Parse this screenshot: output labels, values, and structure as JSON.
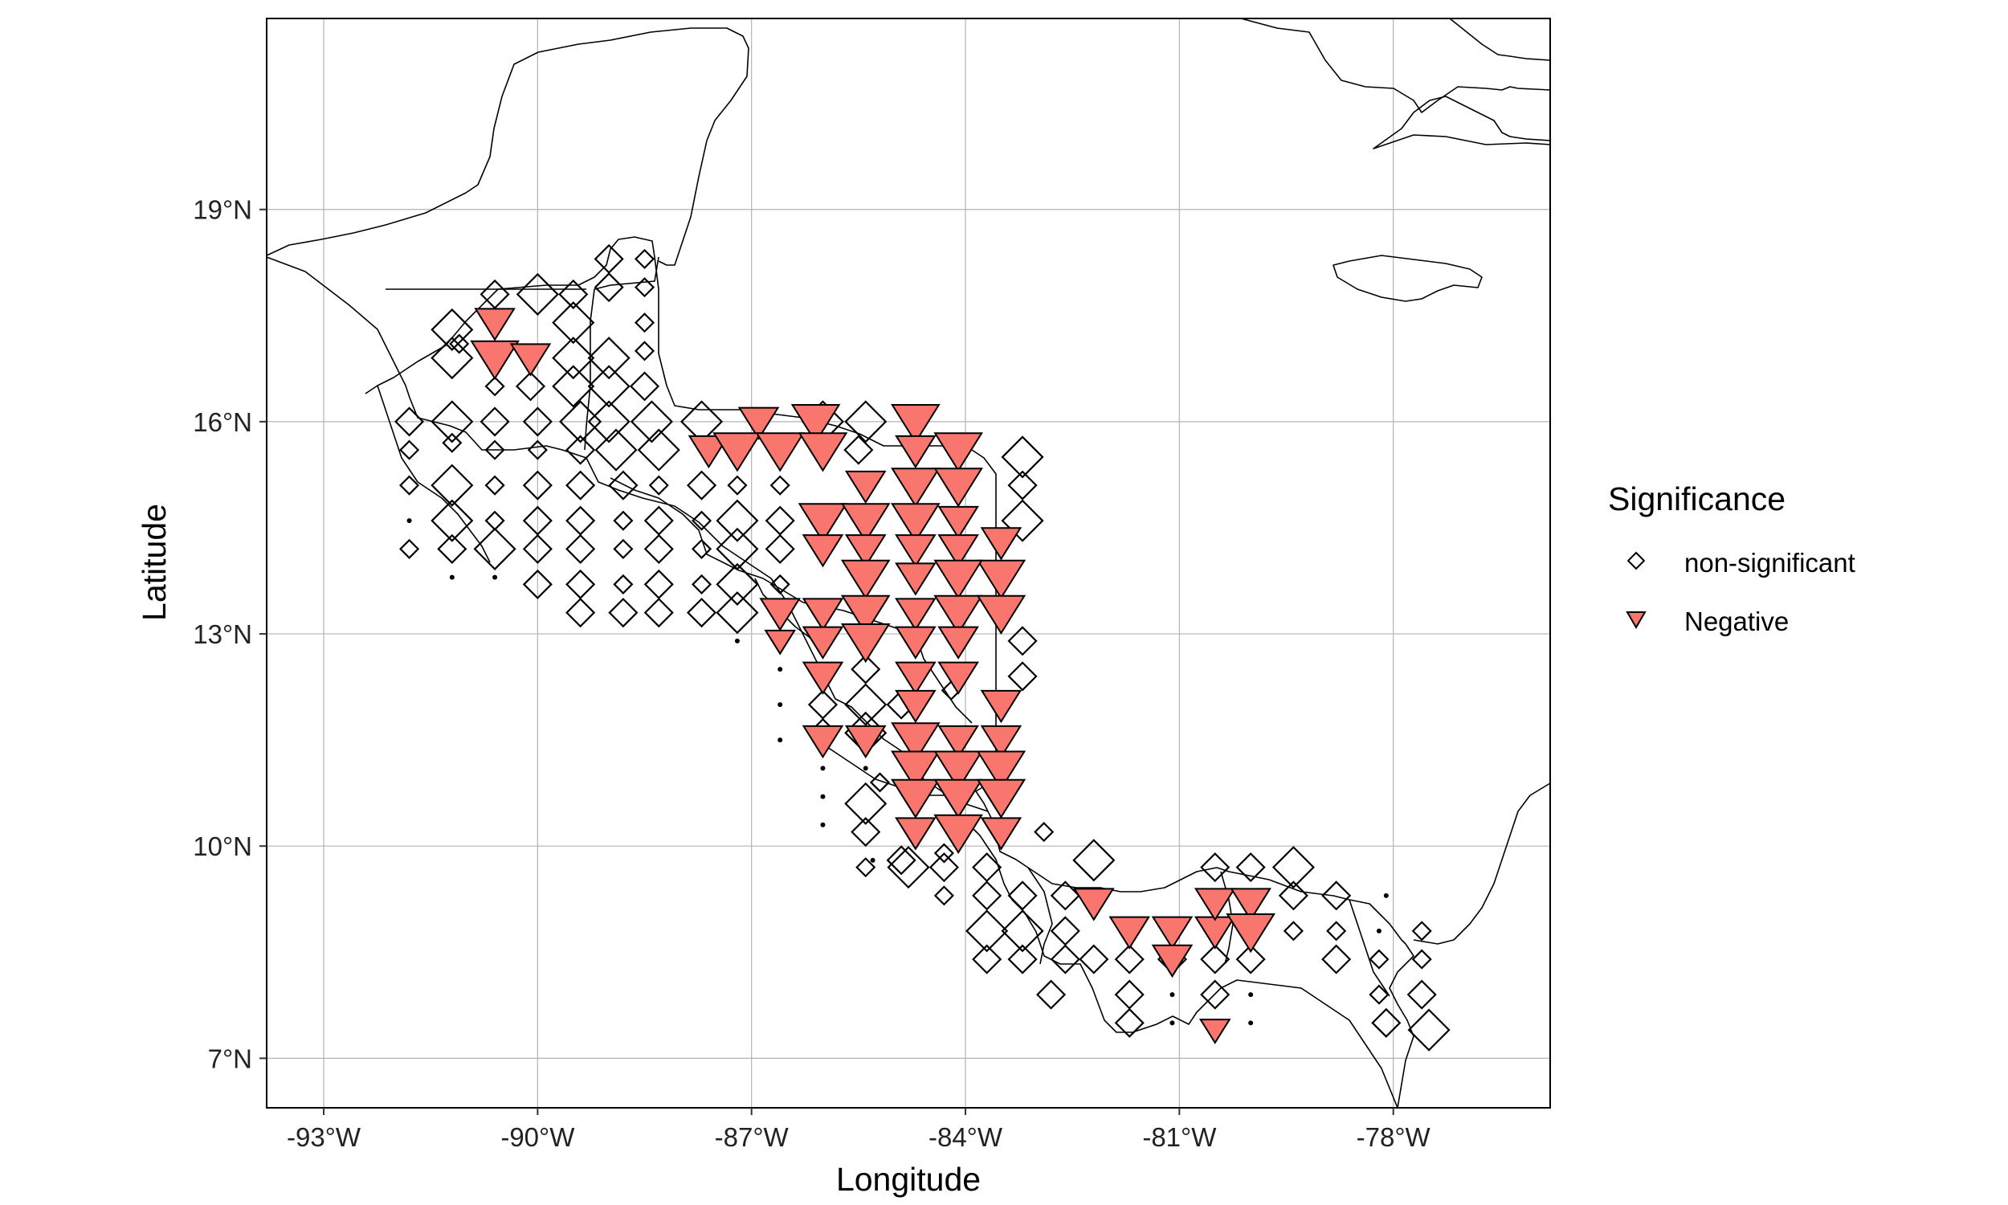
{
  "chart_data": {
    "type": "scatter",
    "map": "Central America",
    "xlabel": "Longitude",
    "ylabel": "Latitude",
    "xlim": [
      -93.8,
      -75.8
    ],
    "ylim": [
      6.3,
      21.7
    ],
    "x_ticks": [
      {
        "value": -93,
        "label": "-93°W"
      },
      {
        "value": -90,
        "label": "-90°W"
      },
      {
        "value": -87,
        "label": "-87°W"
      },
      {
        "value": -84,
        "label": "-84°W"
      },
      {
        "value": -81,
        "label": "-81°W"
      },
      {
        "value": -78,
        "label": "-78°W"
      }
    ],
    "y_ticks": [
      {
        "value": 7,
        "label": "7°N"
      },
      {
        "value": 10,
        "label": "10°N"
      },
      {
        "value": 13,
        "label": "13°N"
      },
      {
        "value": 16,
        "label": "16°N"
      },
      {
        "value": 19,
        "label": "19°N"
      }
    ],
    "grid": true,
    "legend": {
      "title": "Significance",
      "placement": "right",
      "items": [
        {
          "label": "non-significant",
          "shape": "diamond-open",
          "color": "#000000"
        },
        {
          "label": "Negative",
          "shape": "triangle-down",
          "color": "#F8766D"
        }
      ]
    },
    "colors": {
      "negative_fill": "#F8766D",
      "outline": "#000000",
      "grid": "#b3b3b3"
    },
    "series": [
      {
        "name": "non-significant",
        "points": [
          [
            -91.2,
            17.3,
            3
          ],
          [
            -90.6,
            17.8,
            2
          ],
          [
            -90.0,
            17.8,
            3
          ],
          [
            -89.5,
            17.8,
            2
          ],
          [
            -89.0,
            18.3,
            2
          ],
          [
            -88.5,
            18.3,
            1
          ],
          [
            -89.5,
            17.4,
            3
          ],
          [
            -89.0,
            17.9,
            2
          ],
          [
            -88.5,
            17.9,
            1
          ],
          [
            -91.2,
            16.9,
            3
          ],
          [
            -91.1,
            17.1,
            1
          ],
          [
            -89.5,
            16.9,
            3
          ],
          [
            -89.0,
            16.9,
            3
          ],
          [
            -88.5,
            17.4,
            1
          ],
          [
            -88.5,
            17.0,
            1
          ],
          [
            -90.6,
            16.5,
            1
          ],
          [
            -90.1,
            16.5,
            2
          ],
          [
            -89.5,
            16.5,
            3
          ],
          [
            -89.0,
            16.5,
            3
          ],
          [
            -88.5,
            16.5,
            2
          ],
          [
            -91.8,
            16.0,
            2
          ],
          [
            -91.2,
            16.0,
            3
          ],
          [
            -90.6,
            16.0,
            2
          ],
          [
            -90.0,
            16.0,
            2
          ],
          [
            -89.4,
            16.0,
            3
          ],
          [
            -89.0,
            16.0,
            3
          ],
          [
            -88.4,
            16.0,
            3
          ],
          [
            -87.7,
            16.0,
            3
          ],
          [
            -86.0,
            16.0,
            3
          ],
          [
            -85.4,
            16.0,
            3
          ],
          [
            -91.8,
            15.6,
            1
          ],
          [
            -91.2,
            15.7,
            1
          ],
          [
            -90.6,
            15.6,
            1
          ],
          [
            -90.0,
            15.6,
            1
          ],
          [
            -89.4,
            15.6,
            2
          ],
          [
            -88.9,
            15.6,
            3
          ],
          [
            -88.3,
            15.6,
            3
          ],
          [
            -85.5,
            15.6,
            2
          ],
          [
            -83.2,
            15.5,
            3
          ],
          [
            -91.8,
            15.1,
            1
          ],
          [
            -91.2,
            15.1,
            3
          ],
          [
            -90.6,
            15.1,
            1
          ],
          [
            -90.0,
            15.1,
            2
          ],
          [
            -89.4,
            15.1,
            2
          ],
          [
            -88.8,
            15.1,
            2
          ],
          [
            -88.3,
            15.1,
            1
          ],
          [
            -87.7,
            15.1,
            2
          ],
          [
            -87.2,
            15.1,
            1
          ],
          [
            -86.6,
            15.1,
            1
          ],
          [
            -83.2,
            15.1,
            2
          ],
          [
            -91.8,
            14.6,
            0
          ],
          [
            -91.2,
            14.6,
            3
          ],
          [
            -90.6,
            14.6,
            1
          ],
          [
            -90.0,
            14.6,
            2
          ],
          [
            -89.4,
            14.6,
            2
          ],
          [
            -88.8,
            14.6,
            1
          ],
          [
            -88.3,
            14.6,
            2
          ],
          [
            -87.7,
            14.6,
            1
          ],
          [
            -87.2,
            14.6,
            3
          ],
          [
            -86.6,
            14.6,
            2
          ],
          [
            -83.2,
            14.6,
            3
          ],
          [
            -91.8,
            14.2,
            1
          ],
          [
            -91.2,
            14.2,
            2
          ],
          [
            -90.6,
            14.2,
            3
          ],
          [
            -90.0,
            14.2,
            2
          ],
          [
            -89.4,
            14.2,
            2
          ],
          [
            -88.8,
            14.2,
            1
          ],
          [
            -88.3,
            14.2,
            2
          ],
          [
            -87.7,
            14.2,
            1
          ],
          [
            -87.2,
            14.2,
            3
          ],
          [
            -86.6,
            14.2,
            2
          ],
          [
            -91.2,
            13.8,
            0
          ],
          [
            -90.6,
            13.8,
            0
          ],
          [
            -90.0,
            13.7,
            2
          ],
          [
            -89.4,
            13.7,
            2
          ],
          [
            -88.8,
            13.7,
            1
          ],
          [
            -88.3,
            13.7,
            2
          ],
          [
            -87.7,
            13.7,
            1
          ],
          [
            -87.2,
            13.7,
            3
          ],
          [
            -86.6,
            13.7,
            1
          ],
          [
            -89.4,
            13.3,
            2
          ],
          [
            -88.8,
            13.3,
            2
          ],
          [
            -88.3,
            13.3,
            2
          ],
          [
            -87.7,
            13.3,
            2
          ],
          [
            -87.2,
            13.3,
            3
          ],
          [
            -87.2,
            12.9,
            0
          ],
          [
            -86.6,
            12.9,
            0
          ],
          [
            -83.2,
            12.9,
            2
          ],
          [
            -86.6,
            12.5,
            0
          ],
          [
            -86.0,
            12.5,
            0
          ],
          [
            -85.4,
            12.5,
            2
          ],
          [
            -83.2,
            12.4,
            2
          ],
          [
            -86.6,
            12.0,
            0
          ],
          [
            -86.0,
            12.0,
            2
          ],
          [
            -85.4,
            12.0,
            3
          ],
          [
            -84.9,
            12.0,
            2
          ],
          [
            -86.6,
            11.5,
            0
          ],
          [
            -86.0,
            11.6,
            2
          ],
          [
            -85.4,
            11.6,
            3
          ],
          [
            -86.0,
            11.1,
            0
          ],
          [
            -85.4,
            11.1,
            0
          ],
          [
            -85.2,
            10.9,
            1
          ],
          [
            -86.0,
            10.7,
            0
          ],
          [
            -85.4,
            10.6,
            3
          ],
          [
            -86.0,
            10.3,
            0
          ],
          [
            -85.4,
            10.2,
            2
          ],
          [
            -85.4,
            9.7,
            1
          ],
          [
            -84.9,
            9.8,
            2
          ],
          [
            -85.3,
            9.8,
            0
          ],
          [
            -84.8,
            9.7,
            3
          ],
          [
            -84.3,
            9.7,
            2
          ],
          [
            -83.7,
            9.7,
            2
          ],
          [
            -82.9,
            10.2,
            1
          ],
          [
            -82.2,
            9.8,
            3
          ],
          [
            -84.3,
            9.3,
            1
          ],
          [
            -83.7,
            9.3,
            2
          ],
          [
            -83.2,
            9.3,
            2
          ],
          [
            -82.6,
            9.3,
            2
          ],
          [
            -83.7,
            8.8,
            3
          ],
          [
            -83.2,
            8.8,
            3
          ],
          [
            -82.6,
            8.8,
            2
          ],
          [
            -83.7,
            8.4,
            2
          ],
          [
            -83.2,
            8.4,
            2
          ],
          [
            -82.6,
            8.4,
            2
          ],
          [
            -82.2,
            8.4,
            2
          ],
          [
            -81.7,
            8.4,
            2
          ],
          [
            -81.1,
            8.4,
            2
          ],
          [
            -80.5,
            8.4,
            2
          ],
          [
            -80.0,
            8.4,
            2
          ],
          [
            -82.8,
            7.9,
            2
          ],
          [
            -81.7,
            7.9,
            2
          ],
          [
            -81.1,
            7.9,
            0
          ],
          [
            -80.5,
            7.9,
            2
          ],
          [
            -80.0,
            7.9,
            0
          ],
          [
            -81.7,
            7.5,
            2
          ],
          [
            -81.1,
            7.5,
            0
          ],
          [
            -80.6,
            7.5,
            0
          ],
          [
            -80.0,
            7.5,
            0
          ],
          [
            -80.5,
            9.7,
            2
          ],
          [
            -80.0,
            9.7,
            2
          ],
          [
            -79.4,
            9.7,
            3
          ],
          [
            -79.4,
            9.3,
            2
          ],
          [
            -78.8,
            9.3,
            2
          ],
          [
            -79.4,
            8.8,
            1
          ],
          [
            -78.8,
            8.8,
            1
          ],
          [
            -78.2,
            8.8,
            0
          ],
          [
            -77.6,
            8.8,
            1
          ],
          [
            -78.8,
            8.4,
            2
          ],
          [
            -78.2,
            8.4,
            1
          ],
          [
            -77.6,
            8.4,
            1
          ],
          [
            -78.1,
            9.3,
            0
          ],
          [
            -78.2,
            7.9,
            1
          ],
          [
            -77.6,
            7.9,
            2
          ],
          [
            -78.1,
            7.5,
            2
          ],
          [
            -77.5,
            7.4,
            3
          ],
          [
            -84.7,
            14.7,
            1
          ],
          [
            -84.2,
            12.2,
            1
          ],
          [
            -84.7,
            10.2,
            1
          ],
          [
            -84.3,
            9.9,
            1
          ]
        ]
      },
      {
        "name": "Negative",
        "points": [
          [
            -90.6,
            17.4,
            2
          ],
          [
            -90.6,
            16.9,
            3
          ],
          [
            -90.1,
            16.9,
            2
          ],
          [
            -86.9,
            16.0,
            2
          ],
          [
            -86.1,
            16.0,
            3
          ],
          [
            -84.7,
            16.0,
            3
          ],
          [
            -87.6,
            15.6,
            2
          ],
          [
            -87.2,
            15.6,
            3
          ],
          [
            -86.6,
            15.6,
            3
          ],
          [
            -86.0,
            15.6,
            3
          ],
          [
            -84.7,
            15.6,
            2
          ],
          [
            -84.1,
            15.6,
            3
          ],
          [
            -85.4,
            15.1,
            2
          ],
          [
            -84.7,
            15.1,
            3
          ],
          [
            -84.1,
            15.1,
            3
          ],
          [
            -86.0,
            14.6,
            3
          ],
          [
            -85.4,
            14.6,
            3
          ],
          [
            -84.7,
            14.6,
            3
          ],
          [
            -84.1,
            14.6,
            2
          ],
          [
            -83.5,
            14.3,
            2
          ],
          [
            -86.0,
            14.2,
            2
          ],
          [
            -85.4,
            14.2,
            2
          ],
          [
            -84.7,
            14.2,
            2
          ],
          [
            -84.1,
            14.2,
            2
          ],
          [
            -83.5,
            13.8,
            3
          ],
          [
            -85.4,
            13.8,
            3
          ],
          [
            -84.7,
            13.8,
            2
          ],
          [
            -84.1,
            13.8,
            3
          ],
          [
            -86.6,
            13.3,
            2
          ],
          [
            -86.0,
            13.3,
            2
          ],
          [
            -85.4,
            13.3,
            3
          ],
          [
            -84.7,
            13.3,
            2
          ],
          [
            -84.1,
            13.3,
            3
          ],
          [
            -83.5,
            13.3,
            3
          ],
          [
            -86.6,
            12.9,
            1
          ],
          [
            -86.0,
            12.9,
            2
          ],
          [
            -85.4,
            12.9,
            3
          ],
          [
            -84.7,
            12.9,
            2
          ],
          [
            -84.1,
            12.9,
            2
          ],
          [
            -86.0,
            12.4,
            2
          ],
          [
            -84.7,
            12.4,
            2
          ],
          [
            -84.1,
            12.4,
            2
          ],
          [
            -83.5,
            12.0,
            2
          ],
          [
            -84.7,
            12.0,
            2
          ],
          [
            -86.0,
            11.5,
            2
          ],
          [
            -85.4,
            11.5,
            2
          ],
          [
            -84.7,
            11.5,
            3
          ],
          [
            -84.1,
            11.5,
            2
          ],
          [
            -83.5,
            11.5,
            2
          ],
          [
            -84.7,
            11.1,
            3
          ],
          [
            -84.1,
            11.1,
            3
          ],
          [
            -83.5,
            11.1,
            3
          ],
          [
            -84.7,
            10.7,
            3
          ],
          [
            -84.1,
            10.7,
            3
          ],
          [
            -83.5,
            10.7,
            3
          ],
          [
            -84.7,
            10.2,
            2
          ],
          [
            -84.1,
            10.2,
            3
          ],
          [
            -83.5,
            10.2,
            2
          ],
          [
            -82.2,
            9.2,
            2
          ],
          [
            -81.7,
            8.8,
            2
          ],
          [
            -81.1,
            8.8,
            2
          ],
          [
            -80.5,
            8.8,
            2
          ],
          [
            -80.5,
            9.2,
            2
          ],
          [
            -80.0,
            9.2,
            2
          ],
          [
            -80.0,
            8.8,
            3
          ],
          [
            -81.1,
            8.4,
            2
          ],
          [
            -80.5,
            7.4,
            1
          ]
        ]
      }
    ]
  }
}
